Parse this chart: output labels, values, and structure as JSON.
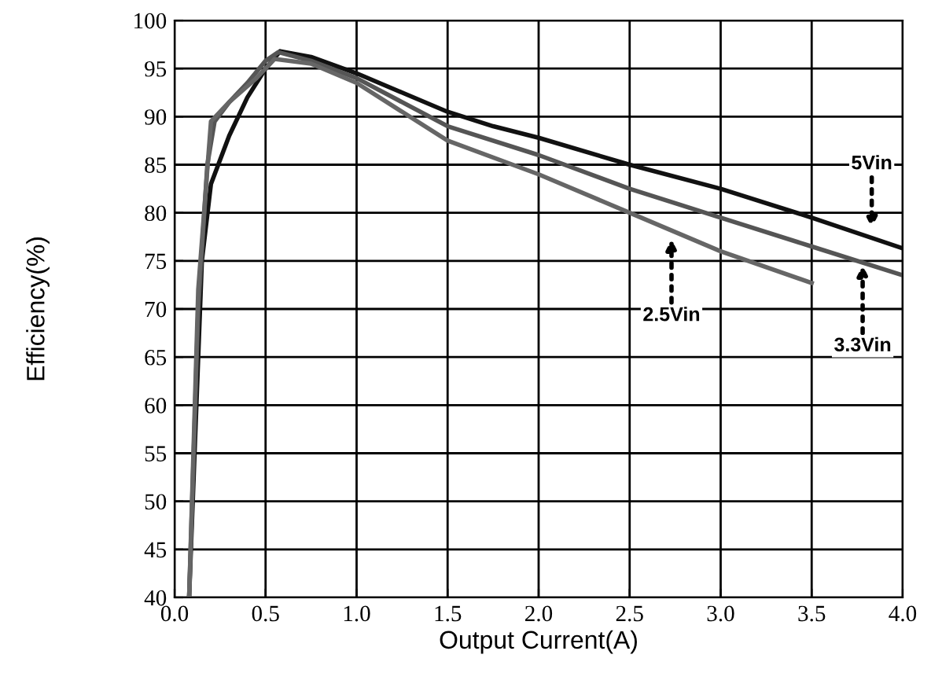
{
  "chart_data": {
    "type": "line",
    "xlabel": "Output Current(A)",
    "ylabel": "Efficiency(%)",
    "xlim": [
      0,
      4.0
    ],
    "ylim": [
      40,
      100
    ],
    "xticks": [
      {
        "value": 0,
        "label": "0.0"
      },
      0.5,
      {
        "value": 1,
        "label": "1.0"
      },
      1.5,
      {
        "value": 2,
        "label": "2.0"
      },
      2.5,
      {
        "value": 3,
        "label": "3.0"
      },
      3.5,
      {
        "value": 4,
        "label": "4.0"
      }
    ],
    "yticks": [
      40,
      45,
      50,
      55,
      60,
      65,
      70,
      75,
      80,
      85,
      90,
      95,
      100
    ],
    "grid": true,
    "marker": "none",
    "line_style": "solid",
    "series": [
      {
        "color": "#111111",
        "x": [
          0.08,
          0.15,
          0.2,
          0.3,
          0.4,
          0.5,
          0.58,
          0.75,
          1.0,
          1.25,
          1.5,
          1.75,
          2.0,
          2.5,
          3.0,
          3.5,
          4.0
        ],
        "values": [
          40,
          75,
          83,
          88,
          92,
          95,
          96.8,
          96.2,
          94.5,
          92.5,
          90.5,
          89,
          87.8,
          85,
          82.5,
          79.5,
          76.3
        ]
      },
      {
        "color": "#555555",
        "x": [
          0.08,
          0.13,
          0.18,
          0.22,
          0.3,
          0.4,
          0.5,
          0.57,
          0.75,
          1.0,
          1.5,
          2.0,
          2.5,
          3.0,
          3.5,
          4.0
        ],
        "values": [
          40,
          70,
          85,
          89.5,
          91.5,
          93.5,
          95.8,
          96.7,
          95.8,
          94,
          89,
          86,
          82.5,
          79.5,
          76.5,
          73.5
        ]
      },
      {
        "color": "#666666",
        "x": [
          0.08,
          0.13,
          0.2,
          0.3,
          0.45,
          0.55,
          0.75,
          1.0,
          1.5,
          2.0,
          2.5,
          3.0,
          3.5
        ],
        "values": [
          40,
          72,
          89.5,
          91.5,
          94,
          96,
          95.5,
          93.5,
          87.5,
          84,
          80,
          76,
          72.7
        ]
      }
    ],
    "annotations": [
      {
        "text": "5Vin",
        "x": 3.83,
        "y": 78.2
      },
      {
        "text": "2.5Vin",
        "x": 2.73,
        "y": 77.5
      },
      {
        "text": "3.3Vin",
        "x": 3.78,
        "y": 74.8
      }
    ]
  }
}
